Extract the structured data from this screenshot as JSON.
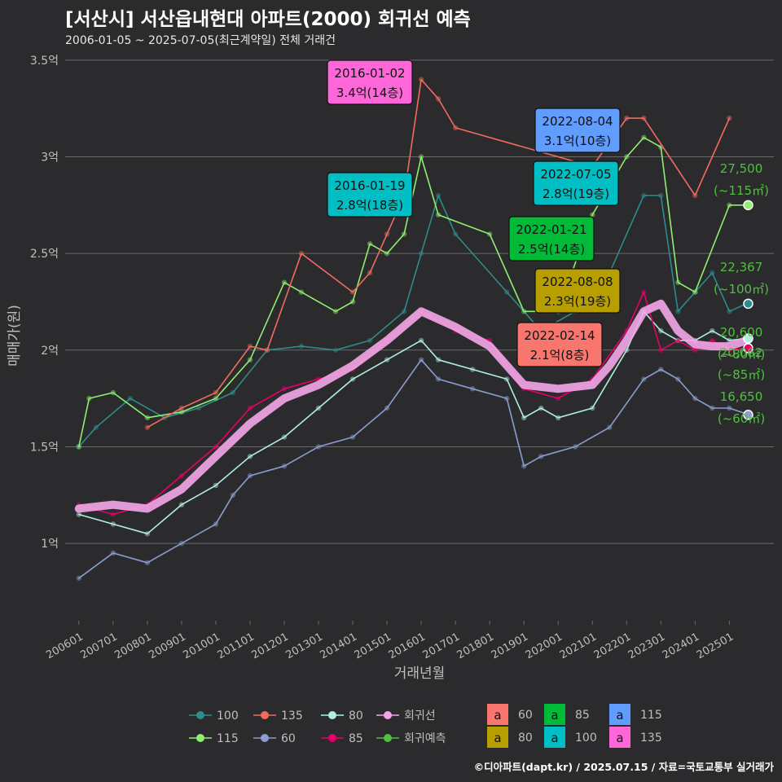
{
  "title": "[서산시] 서산읍내현대 아파트(2000) 회귀선 예측",
  "subtitle": "2006-01-05 ~ 2025-07-05(최근계약일) 전체 거래건",
  "credit": "©디아파트(dapt.kr) / 2025.07.15 / 자료=국토교통부 실거래가",
  "colors": {
    "background": "#2b2b2d",
    "grid": "#6a6a6a",
    "text": "#bfbfbf",
    "accent_green": "#4fbf40"
  },
  "chart_data": {
    "type": "line",
    "xlabel": "거래년월",
    "ylabel": "매매가(원)",
    "ylim": [
      0.6,
      3.5
    ],
    "y_ticks": [
      {
        "value": 1.0,
        "label": "1억"
      },
      {
        "value": 1.5,
        "label": "1.5억"
      },
      {
        "value": 2.0,
        "label": "2억"
      },
      {
        "value": 2.5,
        "label": "2.5억"
      },
      {
        "value": 3.0,
        "label": "3억"
      },
      {
        "value": 3.5,
        "label": "3.5억"
      }
    ],
    "x_ticks": [
      "200601",
      "200701",
      "200801",
      "200901",
      "201001",
      "201101",
      "201201",
      "201301",
      "201401",
      "201501",
      "201601",
      "201701",
      "201801",
      "201901",
      "202001",
      "202101",
      "202201",
      "202301",
      "202401",
      "202501"
    ],
    "series": [
      {
        "name": "100",
        "color": "#2e8b8b",
        "points": [
          [
            2006.0,
            1.5
          ],
          [
            2006.5,
            1.6
          ],
          [
            2007.5,
            1.75
          ],
          [
            2008.5,
            1.65
          ],
          [
            2009.5,
            1.7
          ],
          [
            2010.5,
            1.78
          ],
          [
            2011.5,
            2.0
          ],
          [
            2012.5,
            2.02
          ],
          [
            2013.5,
            2.0
          ],
          [
            2014.5,
            2.05
          ],
          [
            2015.5,
            2.2
          ],
          [
            2016.0,
            2.5
          ],
          [
            2016.5,
            2.8
          ],
          [
            2017.0,
            2.6
          ],
          [
            2018.5,
            2.3
          ],
          [
            2019.5,
            2.1
          ],
          [
            2020.5,
            2.2
          ],
          [
            2021.5,
            2.4
          ],
          [
            2022.5,
            2.8
          ],
          [
            2023.0,
            2.8
          ],
          [
            2023.5,
            2.2
          ],
          [
            2024.0,
            2.3
          ],
          [
            2024.5,
            2.4
          ],
          [
            2025.0,
            2.2
          ],
          [
            2025.5,
            2.24
          ]
        ]
      },
      {
        "name": "115",
        "color": "#90ee70",
        "points": [
          [
            2006.0,
            1.5
          ],
          [
            2006.3,
            1.75
          ],
          [
            2007.0,
            1.78
          ],
          [
            2008.0,
            1.65
          ],
          [
            2009.0,
            1.68
          ],
          [
            2010.0,
            1.75
          ],
          [
            2011.0,
            1.95
          ],
          [
            2012.0,
            2.35
          ],
          [
            2012.5,
            2.3
          ],
          [
            2013.5,
            2.2
          ],
          [
            2014.0,
            2.25
          ],
          [
            2014.5,
            2.55
          ],
          [
            2015.0,
            2.5
          ],
          [
            2015.5,
            2.6
          ],
          [
            2016.0,
            3.0
          ],
          [
            2016.5,
            2.7
          ],
          [
            2018.0,
            2.6
          ],
          [
            2019.0,
            2.2
          ],
          [
            2020.0,
            2.2
          ],
          [
            2021.0,
            2.7
          ],
          [
            2022.0,
            3.0
          ],
          [
            2022.5,
            3.1
          ],
          [
            2023.0,
            3.05
          ],
          [
            2023.5,
            2.35
          ],
          [
            2024.0,
            2.3
          ],
          [
            2025.0,
            2.75
          ],
          [
            2025.5,
            2.75
          ]
        ]
      },
      {
        "name": "135",
        "color": "#f26a5e",
        "points": [
          [
            2008.0,
            1.6
          ],
          [
            2009.0,
            1.7
          ],
          [
            2010.0,
            1.78
          ],
          [
            2011.0,
            2.02
          ],
          [
            2011.5,
            2.0
          ],
          [
            2012.5,
            2.5
          ],
          [
            2014.0,
            2.3
          ],
          [
            2014.5,
            2.4
          ],
          [
            2015.0,
            2.6
          ],
          [
            2015.5,
            2.8
          ],
          [
            2016.0,
            3.4
          ],
          [
            2016.5,
            3.3
          ],
          [
            2017.0,
            3.15
          ],
          [
            2021.0,
            2.95
          ],
          [
            2022.0,
            3.2
          ],
          [
            2022.5,
            3.2
          ],
          [
            2024.0,
            2.8
          ],
          [
            2025.0,
            3.2
          ]
        ]
      },
      {
        "name": "60",
        "color": "#8a9fd0",
        "points": [
          [
            2006.0,
            0.82
          ],
          [
            2007.0,
            0.95
          ],
          [
            2008.0,
            0.9
          ],
          [
            2009.0,
            1.0
          ],
          [
            2010.0,
            1.1
          ],
          [
            2010.5,
            1.25
          ],
          [
            2011.0,
            1.35
          ],
          [
            2012.0,
            1.4
          ],
          [
            2013.0,
            1.5
          ],
          [
            2014.0,
            1.55
          ],
          [
            2015.0,
            1.7
          ],
          [
            2016.0,
            1.95
          ],
          [
            2016.5,
            1.85
          ],
          [
            2017.5,
            1.8
          ],
          [
            2018.5,
            1.75
          ],
          [
            2019.0,
            1.4
          ],
          [
            2019.5,
            1.45
          ],
          [
            2020.5,
            1.5
          ],
          [
            2021.5,
            1.6
          ],
          [
            2022.5,
            1.85
          ],
          [
            2023.0,
            1.9
          ],
          [
            2023.5,
            1.85
          ],
          [
            2024.0,
            1.75
          ],
          [
            2024.5,
            1.7
          ],
          [
            2025.0,
            1.7
          ],
          [
            2025.5,
            1.67
          ]
        ]
      },
      {
        "name": "80",
        "color": "#b0f0e0",
        "points": [
          [
            2006.0,
            1.15
          ],
          [
            2007.0,
            1.1
          ],
          [
            2008.0,
            1.05
          ],
          [
            2009.0,
            1.2
          ],
          [
            2010.0,
            1.3
          ],
          [
            2011.0,
            1.45
          ],
          [
            2012.0,
            1.55
          ],
          [
            2013.0,
            1.7
          ],
          [
            2014.0,
            1.85
          ],
          [
            2015.0,
            1.95
          ],
          [
            2016.0,
            2.05
          ],
          [
            2016.5,
            1.95
          ],
          [
            2017.5,
            1.9
          ],
          [
            2018.5,
            1.85
          ],
          [
            2019.0,
            1.65
          ],
          [
            2019.5,
            1.7
          ],
          [
            2020.0,
            1.65
          ],
          [
            2021.0,
            1.7
          ],
          [
            2022.0,
            2.0
          ],
          [
            2022.5,
            2.2
          ],
          [
            2023.0,
            2.1
          ],
          [
            2023.5,
            2.05
          ],
          [
            2024.0,
            2.05
          ],
          [
            2024.5,
            2.1
          ],
          [
            2025.0,
            2.05
          ],
          [
            2025.5,
            2.06
          ]
        ]
      },
      {
        "name": "85",
        "color": "#e8006a",
        "points": [
          [
            2006.0,
            1.2
          ],
          [
            2007.0,
            1.15
          ],
          [
            2008.0,
            1.2
          ],
          [
            2009.0,
            1.35
          ],
          [
            2010.0,
            1.5
          ],
          [
            2011.0,
            1.7
          ],
          [
            2012.0,
            1.8
          ],
          [
            2013.0,
            1.85
          ],
          [
            2014.0,
            1.9
          ],
          [
            2015.0,
            2.05
          ],
          [
            2016.0,
            2.2
          ],
          [
            2017.0,
            2.1
          ],
          [
            2018.0,
            2.05
          ],
          [
            2019.0,
            1.8
          ],
          [
            2020.0,
            1.75
          ],
          [
            2021.0,
            1.85
          ],
          [
            2022.0,
            2.1
          ],
          [
            2022.5,
            2.3
          ],
          [
            2023.0,
            2.0
          ],
          [
            2023.5,
            2.05
          ],
          [
            2024.0,
            2.0
          ],
          [
            2024.5,
            2.05
          ],
          [
            2025.0,
            2.0
          ],
          [
            2025.5,
            2.01
          ]
        ]
      },
      {
        "name": "회귀선",
        "color": "#f4a6e8",
        "width": 10,
        "points": [
          [
            2006.0,
            1.18
          ],
          [
            2007.0,
            1.2
          ],
          [
            2008.0,
            1.18
          ],
          [
            2009.0,
            1.28
          ],
          [
            2010.0,
            1.45
          ],
          [
            2011.0,
            1.62
          ],
          [
            2012.0,
            1.75
          ],
          [
            2013.0,
            1.82
          ],
          [
            2014.0,
            1.92
          ],
          [
            2015.0,
            2.05
          ],
          [
            2016.0,
            2.2
          ],
          [
            2017.0,
            2.12
          ],
          [
            2018.0,
            2.02
          ],
          [
            2019.0,
            1.82
          ],
          [
            2020.0,
            1.8
          ],
          [
            2021.0,
            1.82
          ],
          [
            2021.5,
            1.92
          ],
          [
            2022.0,
            2.05
          ],
          [
            2022.5,
            2.2
          ],
          [
            2023.0,
            2.24
          ],
          [
            2023.5,
            2.1
          ],
          [
            2024.0,
            2.03
          ],
          [
            2024.5,
            2.02
          ],
          [
            2025.0,
            2.02
          ],
          [
            2025.5,
            2.05
          ]
        ]
      }
    ],
    "labels": [
      {
        "date": "2016-01-02",
        "price": "3.4억(14층)",
        "color": "#ff66d9",
        "x": 2016.0,
        "y": 3.4
      },
      {
        "date": "2016-01-19",
        "price": "2.8억(18층)",
        "color": "#00bfc4",
        "x": 2016.05,
        "y": 2.8
      },
      {
        "date": "2022-08-04",
        "price": "3.1억(10층)",
        "color": "#619cff",
        "x": 2022.6,
        "y": 3.1
      },
      {
        "date": "2022-07-05",
        "price": "2.8억(19층)",
        "color": "#00bfc4",
        "x": 2022.5,
        "y": 2.8
      },
      {
        "date": "2022-01-21",
        "price": "2.5억(14층)",
        "color": "#00ba38",
        "x": 2022.05,
        "y": 2.5
      },
      {
        "date": "2022-08-08",
        "price": "2.3억(19층)",
        "color": "#b79f00",
        "x": 2022.6,
        "y": 2.3
      },
      {
        "date": "2022-02-14",
        "price": "2.1억(8층)",
        "color": "#f8766d",
        "x": 2022.1,
        "y": 2.1
      }
    ],
    "end_labels": [
      {
        "value": "27,500",
        "area": "(~115㎡)",
        "y": 2.75,
        "color": "#90ee70"
      },
      {
        "value": "22,367",
        "area": "(~100㎡)",
        "y": 2.24,
        "color": "#2e8b8b"
      },
      {
        "value": "20,600",
        "area": "(~80㎡)",
        "y": 2.06,
        "color": "#b0f0e0"
      },
      {
        "value": "20,062",
        "area": "(~85㎡)",
        "y": 2.01,
        "color": "#e8006a"
      },
      {
        "value": "16,650",
        "area": "(~60㎡)",
        "y": 1.665,
        "color": "#8a9fd0"
      }
    ],
    "legend_lines": [
      {
        "label": "100",
        "color": "#2e8b8b"
      },
      {
        "label": "115",
        "color": "#90ee70"
      },
      {
        "label": "135",
        "color": "#f26a5e"
      },
      {
        "label": "60",
        "color": "#8a9fd0"
      },
      {
        "label": "80",
        "color": "#b0f0e0"
      },
      {
        "label": "85",
        "color": "#e8006a"
      },
      {
        "label": "회귀선",
        "color": "#f4a6e8"
      },
      {
        "label": "회귀예측",
        "color": "#4fbf40"
      }
    ],
    "legend_boxes": [
      {
        "label": "60",
        "color": "#f8766d"
      },
      {
        "label": "80",
        "color": "#b79f00"
      },
      {
        "label": "85",
        "color": "#00ba38"
      },
      {
        "label": "100",
        "color": "#00bfc4"
      },
      {
        "label": "115",
        "color": "#619cff"
      },
      {
        "label": "135",
        "color": "#ff66d9"
      }
    ],
    "legend_box_glyph": "a",
    "legend_placement": "bottom"
  }
}
